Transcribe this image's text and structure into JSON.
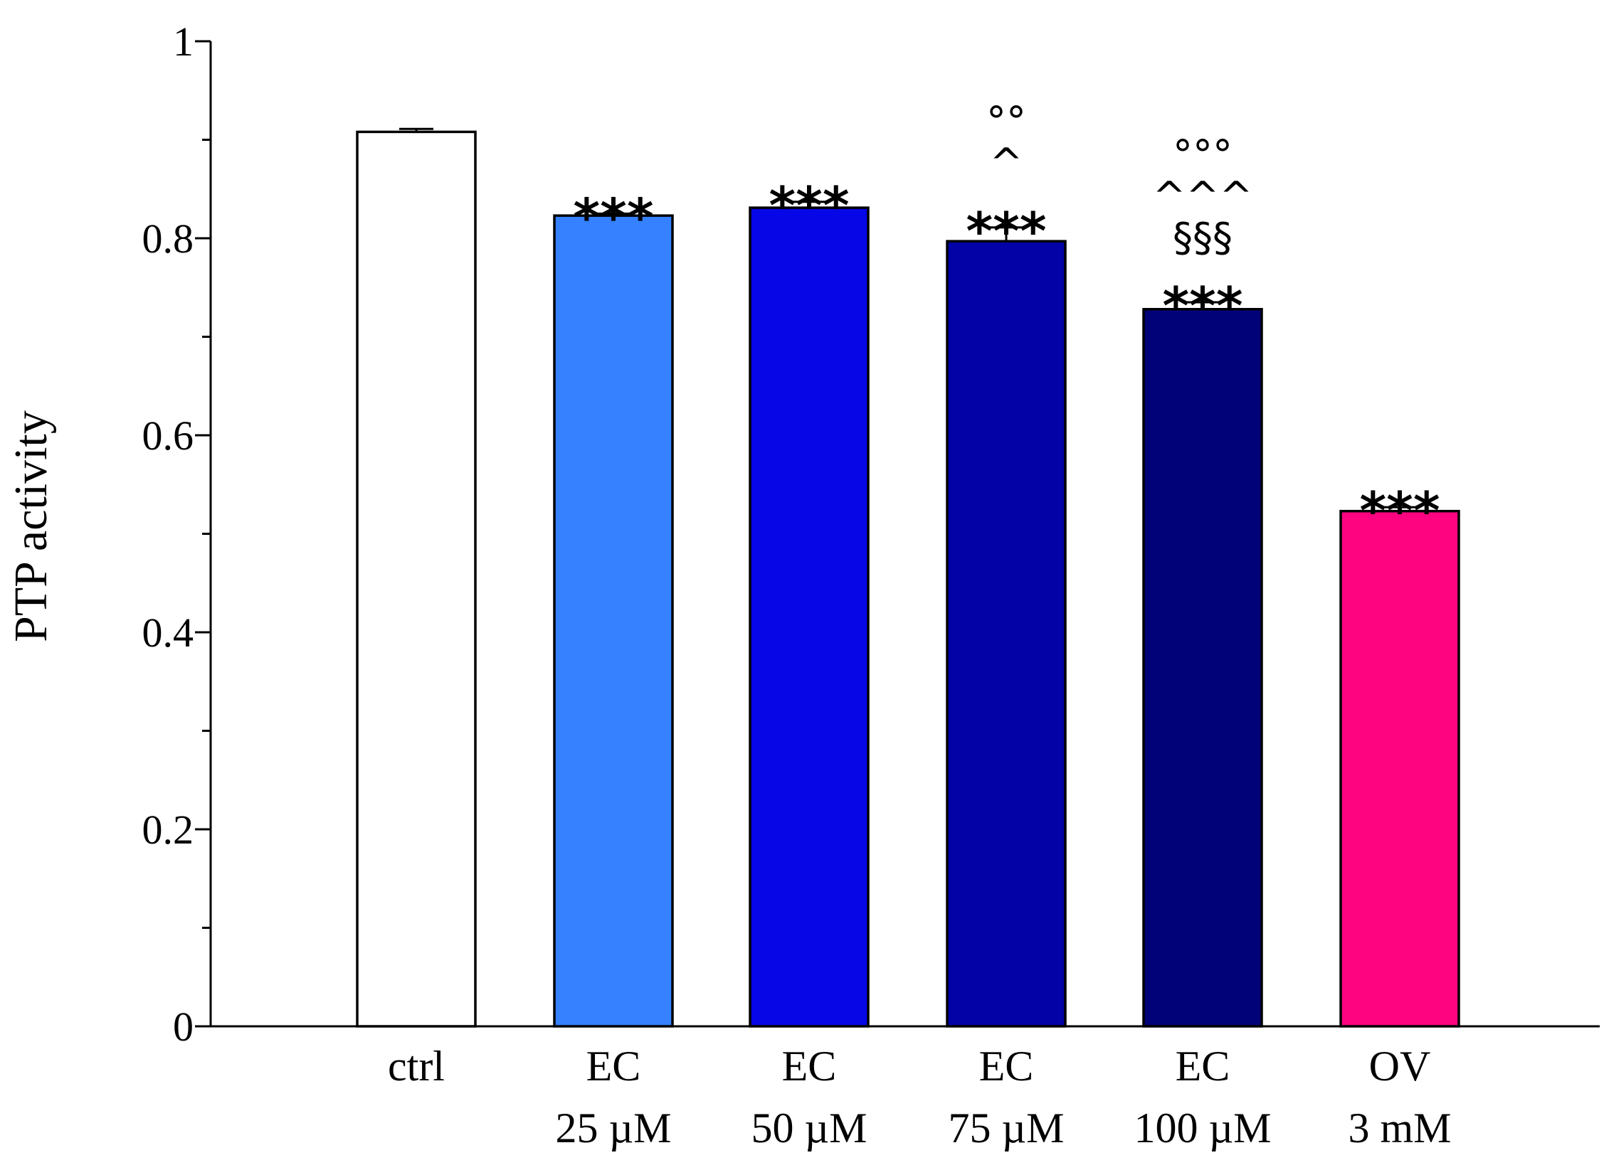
{
  "chart_data": {
    "type": "bar",
    "title": "",
    "xlabel": "",
    "ylabel": "PTP activity",
    "ylim": [
      0,
      1
    ],
    "yticks": [
      {
        "value": 0,
        "label": "0"
      },
      {
        "value": 0.2,
        "label": "0.2"
      },
      {
        "value": 0.4,
        "label": "0.4"
      },
      {
        "value": 0.6,
        "label": "0.6"
      },
      {
        "value": 0.8,
        "label": "0.8"
      },
      {
        "value": 1,
        "label": "1"
      }
    ],
    "minor_tick_step": 0.1,
    "grid": false,
    "bars": [
      {
        "category": [
          "ctrl"
        ],
        "value": 0.908,
        "error": 0.003,
        "color": "#ffffff",
        "annotations": []
      },
      {
        "category": [
          "EC",
          "25 µM"
        ],
        "value": 0.823,
        "error": 0.002,
        "color": "#3581ff",
        "annotations": [
          "***"
        ]
      },
      {
        "category": [
          "EC",
          "50 µM"
        ],
        "value": 0.831,
        "error": 0.006,
        "color": "#0606e6",
        "annotations": [
          "***"
        ]
      },
      {
        "category": [
          "EC",
          "75 µM"
        ],
        "value": 0.797,
        "error": 0.014,
        "color": "#0202a6",
        "annotations": [
          "***",
          "^",
          "°°"
        ]
      },
      {
        "category": [
          "EC",
          "100 µM"
        ],
        "value": 0.728,
        "error": 0.007,
        "color": "#020278",
        "annotations": [
          "***",
          "§§§",
          "^^^",
          "°°°"
        ]
      },
      {
        "category": [
          "OV",
          "3 mM"
        ],
        "value": 0.523,
        "error": 0.004,
        "color": "#ff0480",
        "annotations": [
          "***"
        ]
      }
    ]
  }
}
